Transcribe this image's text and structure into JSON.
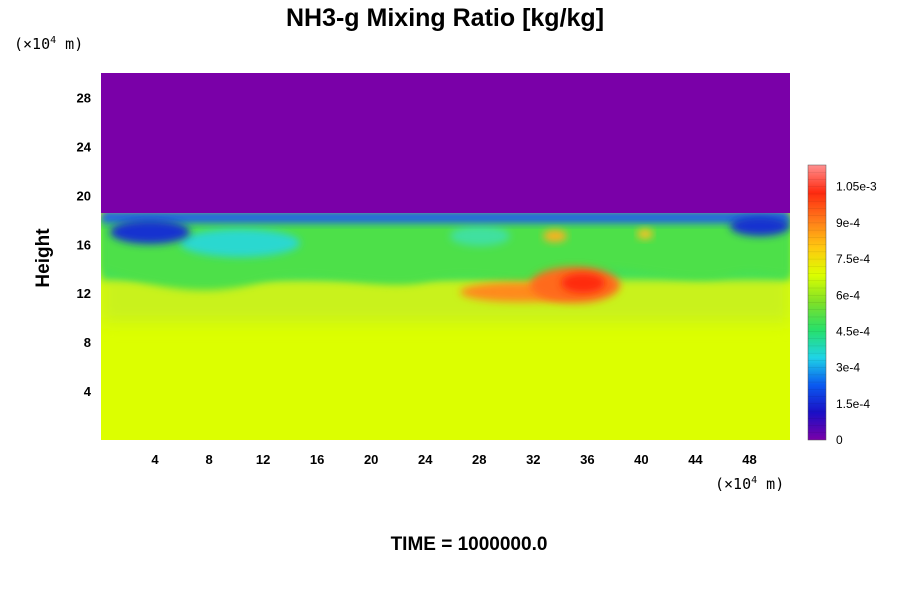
{
  "chart_data": {
    "type": "heatmap",
    "title": "NH3-g Mixing Ratio [kg/kg]",
    "ylabel": "Height",
    "x_unit": "(×10",
    "y_unit": "(×10",
    "unit_exponent": "4",
    "unit_suffix": " m)",
    "x_ticks": [
      "4",
      "8",
      "12",
      "16",
      "20",
      "24",
      "28",
      "32",
      "36",
      "40",
      "44",
      "48"
    ],
    "x_tick_values": [
      4,
      8,
      12,
      16,
      20,
      24,
      28,
      32,
      36,
      40,
      44,
      48
    ],
    "y_ticks": [
      "4",
      "8",
      "12",
      "16",
      "20",
      "24",
      "28"
    ],
    "y_tick_values": [
      4,
      8,
      12,
      16,
      20,
      24,
      28
    ],
    "xlim": [
      0,
      51
    ],
    "ylim": [
      0,
      30
    ],
    "colorbar": {
      "labels": [
        "0",
        "1.5e-4",
        "3e-4",
        "4.5e-4",
        "6e-4",
        "7.5e-4",
        "9e-4",
        "1.05e-3"
      ],
      "label_values": [
        0,
        0.00015,
        0.0003,
        0.00045,
        0.0006,
        0.00075,
        0.0009,
        0.00105
      ],
      "min": 0,
      "max": 0.00114,
      "colors": [
        "#7a00a8",
        "#1a0fc6",
        "#0a5af0",
        "#1fd4e6",
        "#27e06a",
        "#7ee028",
        "#dcff00",
        "#ffc810",
        "#ff7a1a",
        "#ff2a10",
        "#ff9090"
      ]
    },
    "regions": {
      "upper_layer": {
        "y_range": [
          18.5,
          30
        ],
        "value": 0
      },
      "lower_layer": {
        "y_range": [
          0,
          10
        ],
        "value": 0.00075
      },
      "transition_layer": {
        "y_range": [
          10,
          18.5
        ],
        "value_range": [
          0.00015,
          0.00102
        ]
      },
      "peak": {
        "x": 35,
        "y": 12.5,
        "value": 0.00102
      }
    },
    "grid": false
  },
  "footer": {
    "time_label": "TIME = 1000000.0"
  }
}
